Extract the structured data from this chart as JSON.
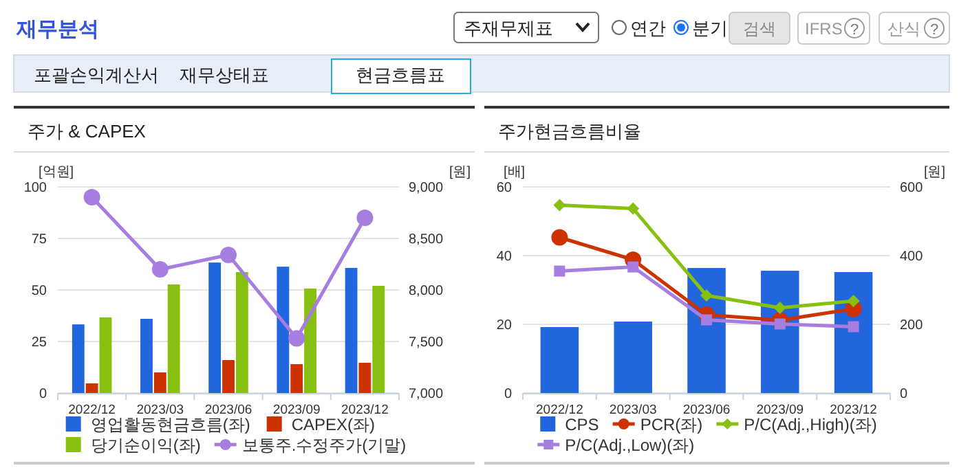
{
  "chart_data": [
    {
      "type": "other",
      "annotations": [
        "재무분석",
        "주재무제표",
        "연간",
        "분기",
        "검색",
        "IFRS",
        "?",
        "산식",
        "?",
        "포괄손익계산서",
        "재무상태표",
        "현금흐름표"
      ]
    },
    {
      "type": "bar",
      "title": "주가 & CAPEX",
      "ylabel": "[억원]",
      "y2label": "[원]",
      "categories": [
        "2022/12",
        "2023/03",
        "2023/06",
        "2023/09",
        "2023/12"
      ],
      "series": [
        {
          "name": "영업활동현금흐름(좌)",
          "type": "bar",
          "color": "#2266dd",
          "values": [
            33.3,
            36,
            63.3,
            61.3,
            60.7
          ]
        },
        {
          "name": "CAPEX(좌)",
          "type": "bar",
          "color": "#cc3300",
          "values": [
            4.7,
            10,
            16,
            14,
            14.7
          ]
        },
        {
          "name": "당기순이익(좌)",
          "type": "bar",
          "color": "#88c011",
          "values": [
            36.7,
            52.7,
            58.7,
            50.7,
            52
          ]
        },
        {
          "name": "보통주.수정주가(기말)",
          "type": "line",
          "axis": "y2",
          "marker": "circle",
          "color": "#a67ee0",
          "values": [
            8900,
            8200,
            8340,
            7530,
            8700
          ]
        }
      ],
      "ylim": [
        0,
        100
      ],
      "yticks": [
        0,
        25,
        50,
        75,
        100
      ],
      "y2lim": [
        7000,
        9000
      ],
      "y2ticks": [
        {
          "value": 7000,
          "label": "7,000"
        },
        {
          "value": 7500,
          "label": "7,500"
        },
        {
          "value": 8000,
          "label": "8,000"
        },
        {
          "value": 8500,
          "label": "8,500"
        },
        {
          "value": 9000,
          "label": "9,000"
        }
      ],
      "grid": "y",
      "legend": "bottom"
    },
    {
      "type": "bar",
      "title": "주가현금흐름비율",
      "ylabel": "[배]",
      "y2label": "[원]",
      "categories": [
        "2022/12",
        "2023/03",
        "2023/06",
        "2023/09",
        "2023/12"
      ],
      "series": [
        {
          "name": "CPS",
          "type": "bar",
          "axis": "y2",
          "color": "#2266dd",
          "values": [
            192,
            208,
            364,
            356,
            352
          ]
        },
        {
          "name": "PCR(좌)",
          "type": "line",
          "marker": "circle",
          "color": "#cc3300",
          "values": [
            45.3,
            38.8,
            22.8,
            21.2,
            24.5
          ]
        },
        {
          "name": "P/C(Adj.,High)(좌)",
          "type": "line",
          "marker": "diamond",
          "color": "#88c011",
          "values": [
            54.7,
            53.7,
            28.4,
            24.8,
            26.8
          ]
        },
        {
          "name": "P/C(Adj.,Low)(좌)",
          "type": "line",
          "marker": "square",
          "color": "#a67ee0",
          "values": [
            35.5,
            36.7,
            21.3,
            20.1,
            19.3
          ]
        }
      ],
      "ylim": [
        0,
        60
      ],
      "yticks": [
        0,
        20,
        40,
        60
      ],
      "y2lim": [
        0,
        600
      ],
      "y2ticks": [
        0,
        200,
        400,
        600
      ],
      "grid": "y",
      "legend": "bottom"
    }
  ]
}
